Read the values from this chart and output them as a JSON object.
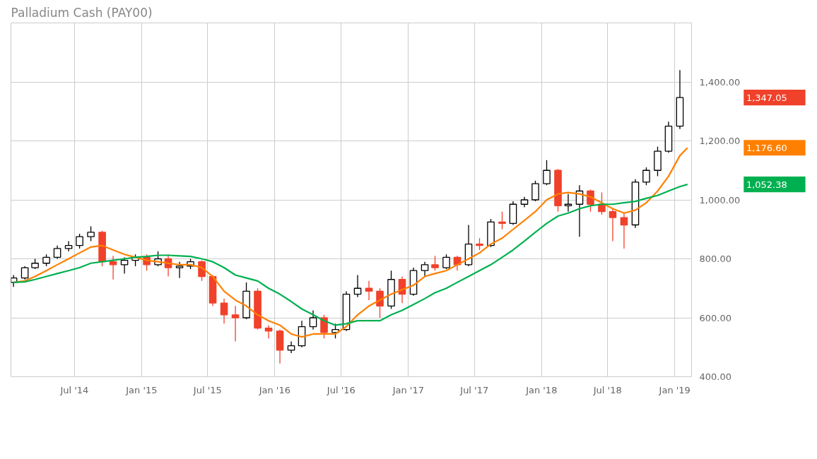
{
  "chart_data": {
    "type": "candlestick",
    "title": "Palladium Cash (PAY00)",
    "x": [
      "2014-01-15",
      "2014-02-15",
      "2014-03-15",
      "2014-04-15",
      "2014-05-15",
      "2014-06-15",
      "2014-07-15",
      "2014-08-15",
      "2014-09-15",
      "2014-10-15",
      "2014-11-15",
      "2014-12-15",
      "2015-01-15",
      "2015-02-15",
      "2015-03-15",
      "2015-04-15",
      "2015-05-15",
      "2015-06-15",
      "2015-07-15",
      "2015-08-15",
      "2015-09-15",
      "2015-10-15",
      "2015-11-15",
      "2015-12-15",
      "2016-01-15",
      "2016-02-15",
      "2016-03-15",
      "2016-04-15",
      "2016-05-15",
      "2016-06-15",
      "2016-07-15",
      "2016-08-15",
      "2016-09-15",
      "2016-10-15",
      "2016-11-15",
      "2016-12-15",
      "2017-01-15",
      "2017-02-15",
      "2017-03-15",
      "2017-04-15",
      "2017-05-15",
      "2017-06-15",
      "2017-07-15",
      "2017-08-15",
      "2017-09-15",
      "2017-10-15",
      "2017-11-15",
      "2017-12-15",
      "2018-01-15",
      "2018-02-15",
      "2018-03-15",
      "2018-04-15",
      "2018-05-15",
      "2018-06-15",
      "2018-07-15",
      "2018-08-15",
      "2018-09-15",
      "2018-10-15",
      "2018-11-15",
      "2018-12-15",
      "2019-01-15"
    ],
    "ohlc": [
      [
        720,
        745,
        705,
        735
      ],
      [
        735,
        775,
        730,
        770
      ],
      [
        770,
        800,
        765,
        785
      ],
      [
        785,
        815,
        775,
        805
      ],
      [
        805,
        845,
        800,
        835
      ],
      [
        835,
        860,
        825,
        845
      ],
      [
        845,
        885,
        835,
        875
      ],
      [
        875,
        910,
        860,
        890
      ],
      [
        890,
        895,
        775,
        790
      ],
      [
        790,
        810,
        730,
        780
      ],
      [
        780,
        805,
        750,
        795
      ],
      [
        795,
        815,
        775,
        805
      ],
      [
        805,
        815,
        760,
        780
      ],
      [
        780,
        825,
        775,
        800
      ],
      [
        800,
        815,
        740,
        770
      ],
      [
        770,
        790,
        735,
        775
      ],
      [
        775,
        800,
        765,
        790
      ],
      [
        790,
        795,
        725,
        740
      ],
      [
        740,
        745,
        640,
        650
      ],
      [
        650,
        665,
        580,
        610
      ],
      [
        610,
        640,
        520,
        600
      ],
      [
        600,
        720,
        595,
        690
      ],
      [
        690,
        700,
        560,
        565
      ],
      [
        565,
        575,
        530,
        555
      ],
      [
        555,
        560,
        445,
        490
      ],
      [
        490,
        520,
        480,
        505
      ],
      [
        505,
        590,
        500,
        570
      ],
      [
        570,
        625,
        560,
        600
      ],
      [
        600,
        610,
        530,
        550
      ],
      [
        550,
        580,
        530,
        560
      ],
      [
        560,
        690,
        555,
        680
      ],
      [
        680,
        745,
        670,
        700
      ],
      [
        700,
        725,
        660,
        690
      ],
      [
        690,
        700,
        600,
        640
      ],
      [
        640,
        760,
        630,
        730
      ],
      [
        730,
        740,
        650,
        680
      ],
      [
        680,
        770,
        675,
        760
      ],
      [
        760,
        790,
        740,
        780
      ],
      [
        780,
        810,
        760,
        770
      ],
      [
        770,
        815,
        765,
        805
      ],
      [
        805,
        810,
        760,
        780
      ],
      [
        780,
        915,
        775,
        850
      ],
      [
        850,
        870,
        830,
        845
      ],
      [
        845,
        935,
        840,
        925
      ],
      [
        925,
        960,
        900,
        920
      ],
      [
        920,
        995,
        915,
        985
      ],
      [
        985,
        1010,
        975,
        1000
      ],
      [
        1000,
        1065,
        995,
        1055
      ],
      [
        1055,
        1135,
        1050,
        1100
      ],
      [
        1100,
        1105,
        960,
        980
      ],
      [
        980,
        1020,
        960,
        985
      ],
      [
        985,
        1050,
        875,
        1030
      ],
      [
        1030,
        1035,
        960,
        985
      ],
      [
        985,
        1025,
        950,
        960
      ],
      [
        960,
        970,
        860,
        940
      ],
      [
        940,
        955,
        835,
        915
      ],
      [
        915,
        1070,
        905,
        1060
      ],
      [
        1060,
        1110,
        1050,
        1100
      ],
      [
        1100,
        1180,
        1080,
        1165
      ],
      [
        1165,
        1265,
        1160,
        1250
      ],
      [
        1250,
        1440,
        1240,
        1347.05
      ]
    ],
    "series": [
      {
        "type": "line",
        "color": "#ff8000",
        "x": [
          "2014-01-15",
          "2014-02-15",
          "2014-03-15",
          "2014-04-15",
          "2014-05-15",
          "2014-06-15",
          "2014-07-15",
          "2014-08-15",
          "2014-09-15",
          "2014-10-15",
          "2014-11-15",
          "2014-12-15",
          "2015-01-15",
          "2015-02-15",
          "2015-03-15",
          "2015-04-15",
          "2015-05-15",
          "2015-06-15",
          "2015-07-15",
          "2015-08-15",
          "2015-09-15",
          "2015-10-15",
          "2015-11-15",
          "2015-12-15",
          "2016-01-15",
          "2016-02-15",
          "2016-03-15",
          "2016-04-15",
          "2016-05-15",
          "2016-06-15",
          "2016-07-15",
          "2016-08-15",
          "2016-09-15",
          "2016-10-15",
          "2016-11-15",
          "2016-12-15",
          "2017-01-15",
          "2017-02-15",
          "2017-03-15",
          "2017-04-15",
          "2017-05-15",
          "2017-06-15",
          "2017-07-15",
          "2017-08-15",
          "2017-09-15",
          "2017-10-15",
          "2017-11-15",
          "2017-12-15",
          "2018-01-15",
          "2018-02-15",
          "2018-03-15",
          "2018-04-15",
          "2018-05-15",
          "2018-06-15",
          "2018-07-15",
          "2018-08-15",
          "2018-09-15",
          "2018-10-15",
          "2018-11-15",
          "2018-12-15",
          "2019-01-15",
          "2019-02-05"
        ],
        "values": [
          720,
          725,
          740,
          760,
          780,
          800,
          820,
          840,
          845,
          830,
          815,
          805,
          795,
          790,
          785,
          780,
          780,
          770,
          740,
          690,
          660,
          640,
          610,
          590,
          575,
          545,
          535,
          545,
          545,
          545,
          570,
          610,
          640,
          660,
          680,
          695,
          710,
          740,
          750,
          760,
          780,
          800,
          820,
          850,
          870,
          900,
          930,
          960,
          1000,
          1020,
          1025,
          1020,
          1010,
          990,
          970,
          955,
          965,
          990,
          1030,
          1080,
          1150,
          1176.6
        ]
      },
      {
        "type": "line",
        "color": "#00b050",
        "x": [
          "2014-01-15",
          "2014-02-15",
          "2014-03-15",
          "2014-04-15",
          "2014-05-15",
          "2014-06-15",
          "2014-07-15",
          "2014-08-15",
          "2014-09-15",
          "2014-10-15",
          "2014-11-15",
          "2014-12-15",
          "2015-01-15",
          "2015-02-15",
          "2015-03-15",
          "2015-04-15",
          "2015-05-15",
          "2015-06-15",
          "2015-07-15",
          "2015-08-15",
          "2015-09-15",
          "2015-10-15",
          "2015-11-15",
          "2015-12-15",
          "2016-01-15",
          "2016-02-15",
          "2016-03-15",
          "2016-04-15",
          "2016-05-15",
          "2016-06-15",
          "2016-07-15",
          "2016-08-15",
          "2016-09-15",
          "2016-10-15",
          "2016-11-15",
          "2016-12-15",
          "2017-01-15",
          "2017-02-15",
          "2017-03-15",
          "2017-04-15",
          "2017-05-15",
          "2017-06-15",
          "2017-07-15",
          "2017-08-15",
          "2017-09-15",
          "2017-10-15",
          "2017-11-15",
          "2017-12-15",
          "2018-01-15",
          "2018-02-15",
          "2018-03-15",
          "2018-04-15",
          "2018-05-15",
          "2018-06-15",
          "2018-07-15",
          "2018-08-15",
          "2018-09-15",
          "2018-10-15",
          "2018-11-15",
          "2018-12-15",
          "2019-01-15",
          "2019-02-05"
        ],
        "values": [
          720,
          722,
          730,
          740,
          750,
          760,
          770,
          785,
          790,
          795,
          800,
          805,
          808,
          812,
          812,
          810,
          808,
          800,
          790,
          770,
          745,
          735,
          725,
          700,
          680,
          655,
          630,
          610,
          590,
          575,
          580,
          590,
          590,
          590,
          610,
          625,
          645,
          665,
          685,
          700,
          720,
          740,
          760,
          780,
          805,
          830,
          860,
          890,
          920,
          945,
          955,
          970,
          980,
          985,
          985,
          990,
          995,
          1005,
          1015,
          1030,
          1045,
          1052.38
        ]
      }
    ],
    "annotations": [
      "1,347.05",
      "1,176.60",
      "1,052.38"
    ],
    "xlim": [
      "2014-01-08",
      "2019-02-16"
    ],
    "xticks": [
      {
        "value": "2014-07-01",
        "label": "Jul '14"
      },
      {
        "value": "2015-01-01",
        "label": "Jan '15"
      },
      {
        "value": "2015-07-01",
        "label": "Jul '15"
      },
      {
        "value": "2016-01-01",
        "label": "Jan '16"
      },
      {
        "value": "2016-07-01",
        "label": "Jul '16"
      },
      {
        "value": "2017-01-01",
        "label": "Jan '17"
      },
      {
        "value": "2017-07-01",
        "label": "Jul '17"
      },
      {
        "value": "2018-01-01",
        "label": "Jan '18"
      },
      {
        "value": "2018-07-01",
        "label": "Jul '18"
      },
      {
        "value": "2019-01-01",
        "label": "Jan '19"
      }
    ],
    "ylim": [
      400,
      1600
    ],
    "yticks": [
      {
        "value": 400,
        "label": "400.00"
      },
      {
        "value": 600,
        "label": "600.00"
      },
      {
        "value": 800,
        "label": "800.00"
      },
      {
        "value": 1000,
        "label": "1,000.00"
      },
      {
        "value": 1200,
        "label": "1,200.00"
      },
      {
        "value": 1400,
        "label": "1,400.00"
      }
    ],
    "grid": true
  }
}
